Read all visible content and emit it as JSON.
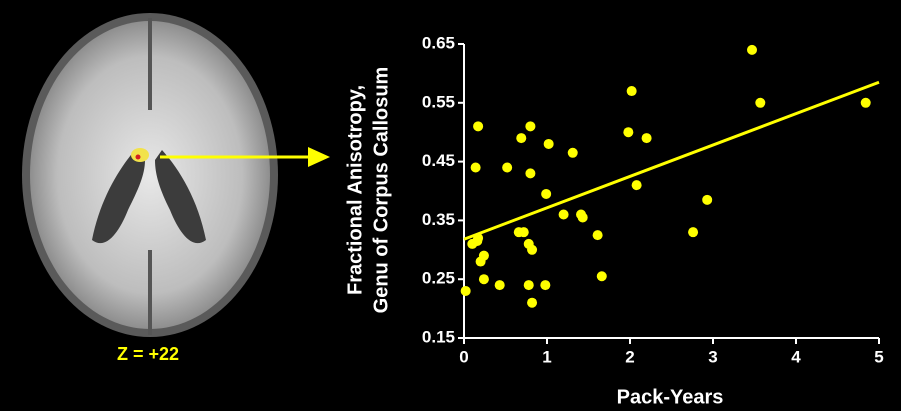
{
  "chart_data": {
    "type": "scatter",
    "panel_label": "Z = +22",
    "xlabel": "Pack-Years",
    "ylabel": [
      "Fractional Anisotropy,",
      "Genu of Corpus Callosum"
    ],
    "xlim": [
      0,
      5
    ],
    "xticks": [
      0,
      1,
      2,
      3,
      4,
      5
    ],
    "ylim": [
      0.15,
      0.65
    ],
    "yticks": [
      0.15,
      0.25,
      0.35,
      0.45,
      0.55,
      0.65
    ],
    "color": "#ffff00",
    "x": [
      0.02,
      0.1,
      0.16,
      0.17,
      0.14,
      0.17,
      0.2,
      0.24,
      0.24,
      0.43,
      0.52,
      0.66,
      0.69,
      0.72,
      0.8,
      0.8,
      0.78,
      0.82,
      0.78,
      0.82,
      0.98,
      0.99,
      1.02,
      1.2,
      1.31,
      1.41,
      1.43,
      1.61,
      1.66,
      1.98,
      2.02,
      2.08,
      2.2,
      2.76,
      2.93,
      3.47,
      3.57,
      4.84
    ],
    "y": [
      0.23,
      0.31,
      0.315,
      0.32,
      0.44,
      0.51,
      0.28,
      0.29,
      0.25,
      0.24,
      0.44,
      0.33,
      0.49,
      0.33,
      0.51,
      0.43,
      0.31,
      0.3,
      0.24,
      0.21,
      0.24,
      0.395,
      0.48,
      0.36,
      0.465,
      0.36,
      0.355,
      0.325,
      0.255,
      0.5,
      0.57,
      0.41,
      0.49,
      0.33,
      0.385,
      0.64,
      0.55,
      0.55
    ],
    "fit": {
      "x": [
        0,
        5
      ],
      "y": [
        0.318,
        0.585
      ]
    }
  }
}
